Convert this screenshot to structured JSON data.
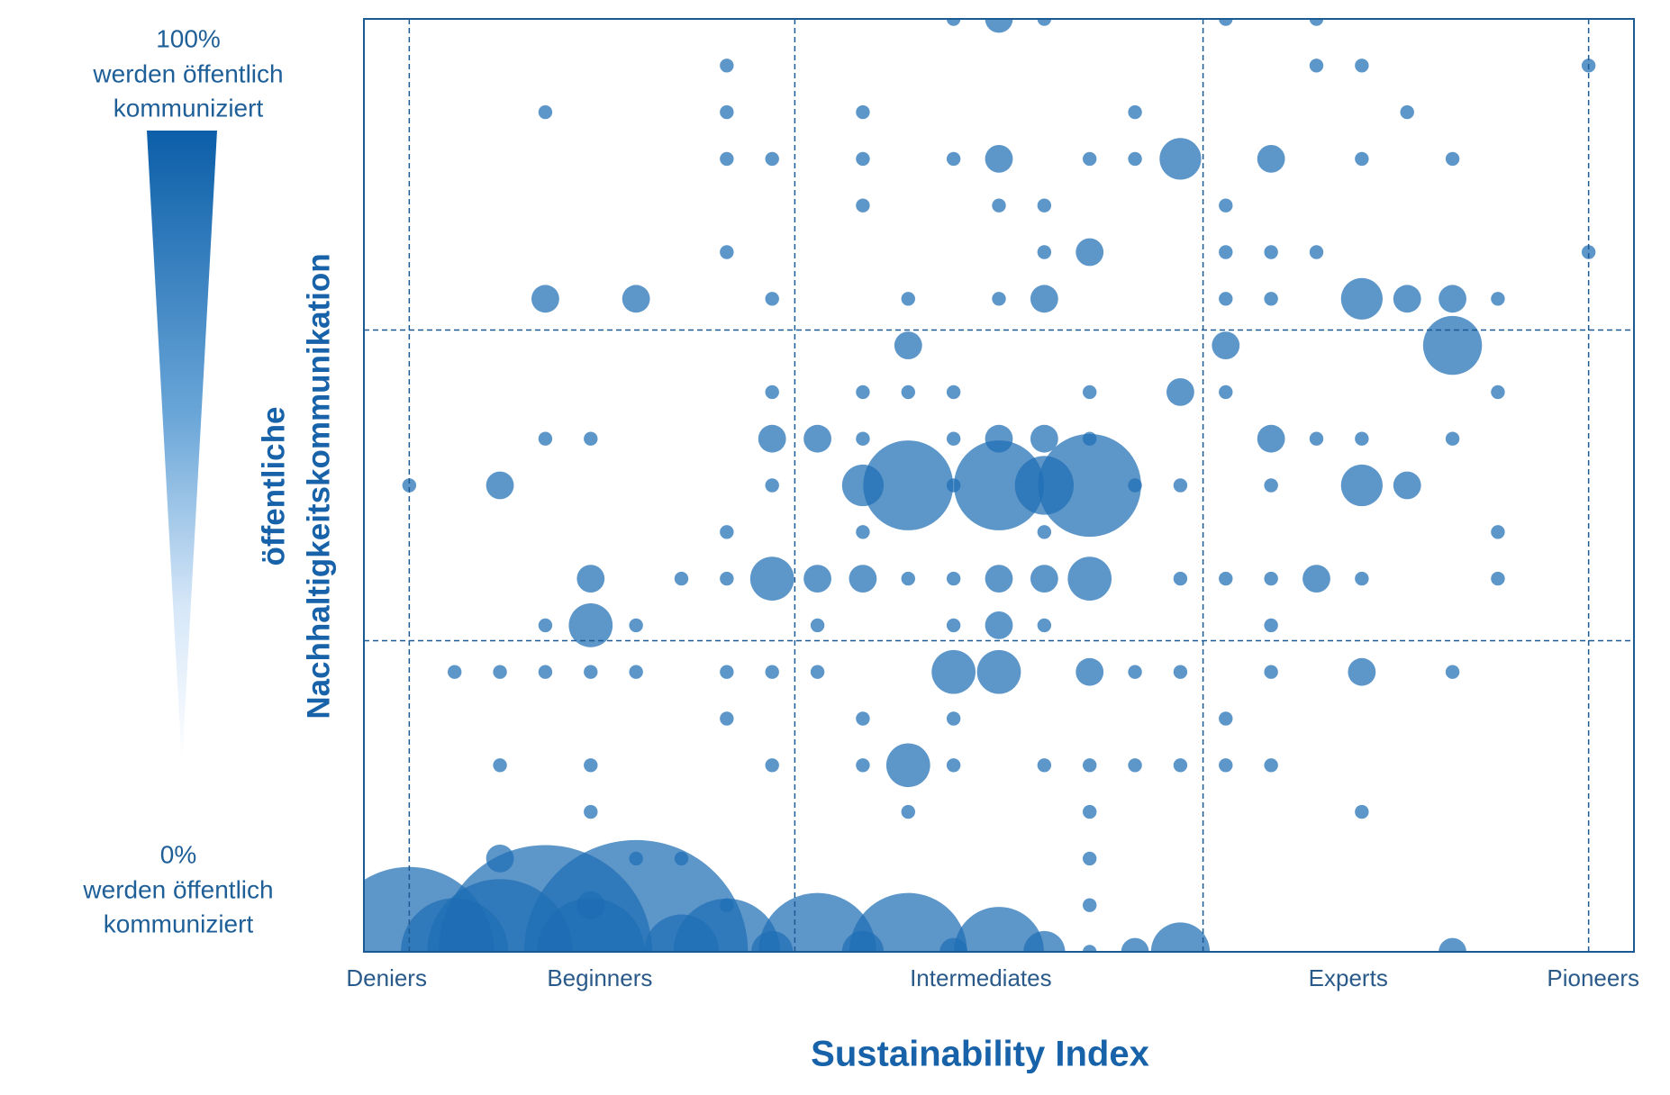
{
  "chart_data": {
    "type": "bubble",
    "legend_top": [
      "100%",
      "werden öffentlich",
      "kommuniziert"
    ],
    "legend_bottom": [
      "0%",
      "werden öffentlich",
      "kommuniziert"
    ],
    "ylabel": [
      "öffentliche",
      "Nachhaltigkeitskommunikation"
    ],
    "xlabel": "Sustainability Index",
    "xlim": [
      -1,
      27
    ],
    "ylim": [
      0,
      20
    ],
    "xticks": [
      {
        "value": -0.5,
        "label": "Deniers"
      },
      {
        "value": 4.2,
        "label": "Beginners"
      },
      {
        "value": 12.6,
        "label": "Intermediates"
      },
      {
        "value": 20.7,
        "label": "Experts"
      },
      {
        "value": 26.1,
        "label": "Pioneers"
      }
    ],
    "xgrid": [
      0,
      8.5,
      17.5,
      26
    ],
    "ygrid": [
      6.67,
      13.33
    ],
    "color": "#1f6eb4",
    "series": [
      {
        "x": [
          12,
          13,
          14,
          18,
          20,
          7,
          20,
          21,
          26,
          3,
          7,
          10,
          16,
          22,
          7,
          8,
          10,
          12,
          13,
          15,
          16,
          17,
          19,
          21,
          23,
          10,
          13,
          14,
          18,
          7,
          14,
          15,
          18,
          19,
          20,
          26,
          3,
          5,
          8,
          11,
          13,
          14,
          18,
          19,
          21,
          22,
          23,
          24,
          11,
          18,
          23,
          8,
          10,
          11,
          12,
          15,
          17,
          18,
          24,
          3,
          4,
          8,
          9,
          10,
          12,
          13,
          14,
          15,
          19,
          20,
          21,
          23,
          0,
          2,
          8,
          10,
          11,
          12,
          13,
          14,
          15,
          16,
          17,
          19,
          21,
          22,
          7,
          10,
          14,
          24,
          4,
          6,
          7,
          8,
          9,
          10,
          11,
          12,
          13,
          14,
          15,
          17,
          18,
          19,
          20,
          21,
          24,
          3,
          4,
          5,
          9,
          12,
          13,
          14,
          19,
          1,
          2,
          3,
          4,
          5,
          7,
          8,
          9,
          12,
          13,
          15,
          16,
          17,
          19,
          21,
          23,
          7,
          10,
          12,
          18,
          2,
          4,
          8,
          10,
          11,
          12,
          14,
          15,
          16,
          17,
          18,
          19,
          4,
          11,
          15,
          21,
          2,
          5,
          6,
          15,
          4,
          7,
          15,
          0,
          1,
          2,
          3,
          4,
          5,
          6,
          7,
          8,
          9,
          10,
          11,
          12,
          13,
          14,
          15,
          16,
          17,
          23
        ],
        "values": [
          20,
          20,
          20,
          20,
          20,
          19,
          19,
          19,
          19,
          18,
          18,
          18,
          18,
          18,
          17,
          17,
          17,
          17,
          17,
          17,
          17,
          17,
          17,
          17,
          17,
          16,
          16,
          16,
          16,
          15,
          15,
          15,
          15,
          15,
          15,
          15,
          14,
          14,
          14,
          14,
          14,
          14,
          14,
          14,
          14,
          14,
          14,
          14,
          13,
          13,
          13,
          12,
          12,
          12,
          12,
          12,
          12,
          12,
          12,
          11,
          11,
          11,
          11,
          11,
          11,
          11,
          11,
          11,
          11,
          11,
          11,
          11,
          10,
          10,
          10,
          10,
          10,
          10,
          10,
          10,
          10,
          10,
          10,
          10,
          10,
          10,
          9,
          9,
          9,
          9,
          8,
          8,
          8,
          8,
          8,
          8,
          8,
          8,
          8,
          8,
          8,
          8,
          8,
          8,
          8,
          8,
          8,
          7,
          7,
          7,
          7,
          7,
          7,
          7,
          7,
          6,
          6,
          6,
          6,
          6,
          6,
          6,
          6,
          6,
          6,
          6,
          6,
          6,
          6,
          6,
          6,
          5,
          5,
          5,
          5,
          4,
          4,
          4,
          4,
          4,
          4,
          4,
          4,
          4,
          4,
          4,
          4,
          3,
          3,
          3,
          3,
          2,
          2,
          2,
          2,
          1,
          1,
          1,
          0,
          0,
          0,
          0,
          0,
          0,
          0,
          0,
          0,
          0,
          0,
          0,
          0,
          0,
          0,
          0,
          0,
          0,
          0
        ],
        "sizes": [
          1,
          4,
          1,
          1,
          1,
          1,
          1,
          1,
          1,
          1,
          1,
          1,
          1,
          1,
          1,
          1,
          1,
          1,
          4,
          1,
          1,
          9,
          4,
          1,
          1,
          1,
          1,
          1,
          1,
          1,
          1,
          4,
          1,
          1,
          1,
          1,
          4,
          4,
          1,
          1,
          1,
          4,
          1,
          1,
          9,
          4,
          4,
          1,
          4,
          4,
          18,
          1,
          1,
          1,
          1,
          1,
          4,
          1,
          1,
          1,
          1,
          4,
          4,
          1,
          1,
          4,
          4,
          1,
          4,
          1,
          1,
          1,
          1,
          4,
          1,
          9,
          42,
          1,
          42,
          18,
          55,
          1,
          1,
          1,
          9,
          4,
          1,
          1,
          1,
          1,
          4,
          1,
          1,
          10,
          4,
          4,
          1,
          1,
          4,
          4,
          10,
          1,
          1,
          1,
          4,
          1,
          1,
          1,
          10,
          1,
          1,
          1,
          4,
          1,
          1,
          1,
          1,
          1,
          1,
          1,
          1,
          1,
          1,
          10,
          10,
          4,
          1,
          1,
          1,
          4,
          1,
          1,
          1,
          1,
          1,
          1,
          1,
          1,
          1,
          10,
          1,
          1,
          1,
          1,
          1,
          1,
          1,
          1,
          1,
          1,
          1,
          4,
          1,
          1,
          1,
          4,
          1,
          1,
          150,
          60,
          110,
          237,
          60,
          260,
          29,
          59,
          9,
          72,
          9,
          72,
          4,
          42,
          9,
          1,
          4,
          18,
          4
        ]
      }
    ]
  }
}
